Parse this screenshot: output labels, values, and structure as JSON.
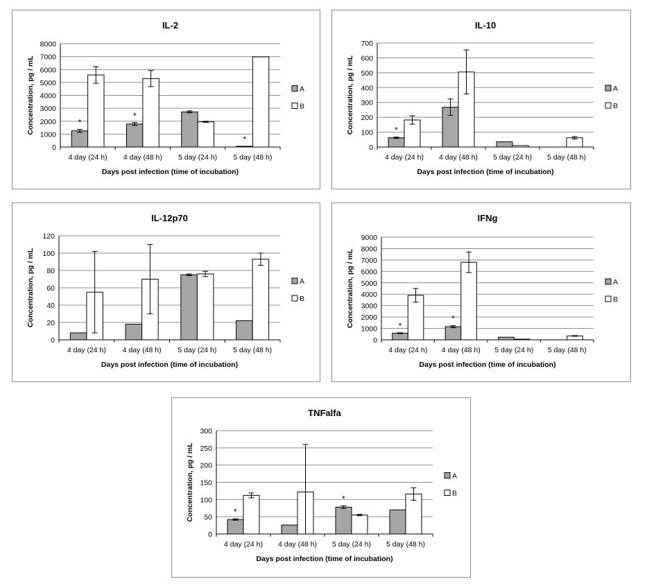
{
  "colors": {
    "series_a": "#a6a6a6",
    "series_b": "#ffffff",
    "stroke": "#000000",
    "grid": "#8c8c8c"
  },
  "chart_data": [
    {
      "type": "bar",
      "title": "IL-2",
      "xlabel": "Days post infection (time of incubation)",
      "ylabel": "Concentration, pg / mL",
      "categories": [
        "4 day (24 h)",
        "4 day (48 h)",
        "5 day (24 h)",
        "5 day (48 h)"
      ],
      "ylim": [
        0,
        8000
      ],
      "yticks": [
        0,
        1000,
        2000,
        3000,
        4000,
        5000,
        6000,
        7000,
        8000
      ],
      "grid": true,
      "legend": "right",
      "series": [
        {
          "name": "A",
          "values": [
            1250,
            1780,
            2720,
            60
          ],
          "errors": [
            120,
            110,
            80,
            0
          ],
          "significant": [
            true,
            true,
            false,
            true
          ]
        },
        {
          "name": "B",
          "values": [
            5580,
            5300,
            1950,
            6980
          ],
          "errors": [
            640,
            620,
            40,
            0
          ],
          "significant": [
            false,
            false,
            false,
            false
          ]
        }
      ]
    },
    {
      "type": "bar",
      "title": "IL-10",
      "xlabel": "Days post infection (time of incubation)",
      "ylabel": "Concentration, pg / mL",
      "categories": [
        "4 day (24 h)",
        "4 day (48 h)",
        "5 day (24 h)",
        "5 day (48 h)"
      ],
      "ylim": [
        0,
        700
      ],
      "yticks": [
        0,
        100,
        200,
        300,
        400,
        500,
        600,
        700
      ],
      "grid": true,
      "legend": "right",
      "series": [
        {
          "name": "A",
          "values": [
            62,
            268,
            35,
            0
          ],
          "errors": [
            5,
            55,
            0,
            0
          ],
          "significant": [
            true,
            false,
            false,
            false
          ]
        },
        {
          "name": "B",
          "values": [
            182,
            505,
            10,
            62
          ],
          "errors": [
            28,
            148,
            0,
            8
          ],
          "significant": [
            false,
            false,
            false,
            false
          ]
        }
      ]
    },
    {
      "type": "bar",
      "title": "IL-12p70",
      "xlabel": "Days post infection (time of incubation)",
      "ylabel": "Concentration, pg / mL",
      "categories": [
        "4 day (24 h)",
        "4 day (48 h)",
        "5 day (24 h)",
        "5 day (48 h)"
      ],
      "ylim": [
        0,
        120
      ],
      "yticks": [
        0,
        20,
        40,
        60,
        80,
        100,
        120
      ],
      "grid": true,
      "legend": "right",
      "series": [
        {
          "name": "A",
          "values": [
            8,
            18,
            75,
            22
          ],
          "errors": [
            0,
            0,
            1,
            0
          ],
          "significant": [
            false,
            false,
            false,
            false
          ]
        },
        {
          "name": "B",
          "values": [
            55,
            70,
            76,
            93
          ],
          "errors": [
            47,
            40,
            3,
            7
          ],
          "significant": [
            false,
            false,
            false,
            false
          ]
        }
      ]
    },
    {
      "type": "bar",
      "title": "IFNg",
      "xlabel": "Days post infection (time of incubation)",
      "ylabel": "Concentration, pg / mL",
      "categories": [
        "4 day (24 h)",
        "4 day (48 h)",
        "5 day (24 h)",
        "5 day (48 h)"
      ],
      "ylim": [
        0,
        9000
      ],
      "yticks": [
        0,
        1000,
        2000,
        3000,
        4000,
        5000,
        6000,
        7000,
        8000,
        9000
      ],
      "grid": true,
      "legend": "right",
      "series": [
        {
          "name": "A",
          "values": [
            580,
            1150,
            230,
            0
          ],
          "errors": [
            40,
            90,
            0,
            0
          ],
          "significant": [
            true,
            true,
            false,
            false
          ]
        },
        {
          "name": "B",
          "values": [
            3900,
            6800,
            60,
            340
          ],
          "errors": [
            600,
            900,
            0,
            30
          ],
          "significant": [
            false,
            false,
            false,
            false
          ]
        }
      ]
    },
    {
      "type": "bar",
      "title": "TNFalfa",
      "xlabel": "Days post infection (time of incubation)",
      "ylabel": "Concentration, pg / mL",
      "categories": [
        "4 day (24 h)",
        "4 day (48 h)",
        "5 day (24 h)",
        "5 day (48 h)"
      ],
      "ylim": [
        0,
        300
      ],
      "yticks": [
        0,
        50,
        100,
        150,
        200,
        250,
        300
      ],
      "grid": true,
      "legend": "right",
      "series": [
        {
          "name": "A",
          "values": [
            42,
            26,
            78,
            70
          ],
          "errors": [
            2,
            0,
            4,
            0
          ],
          "significant": [
            true,
            false,
            true,
            false
          ]
        },
        {
          "name": "B",
          "values": [
            112,
            122,
            55,
            116
          ],
          "errors": [
            7,
            138,
            2,
            18
          ],
          "significant": [
            false,
            false,
            false,
            false
          ]
        }
      ]
    }
  ]
}
